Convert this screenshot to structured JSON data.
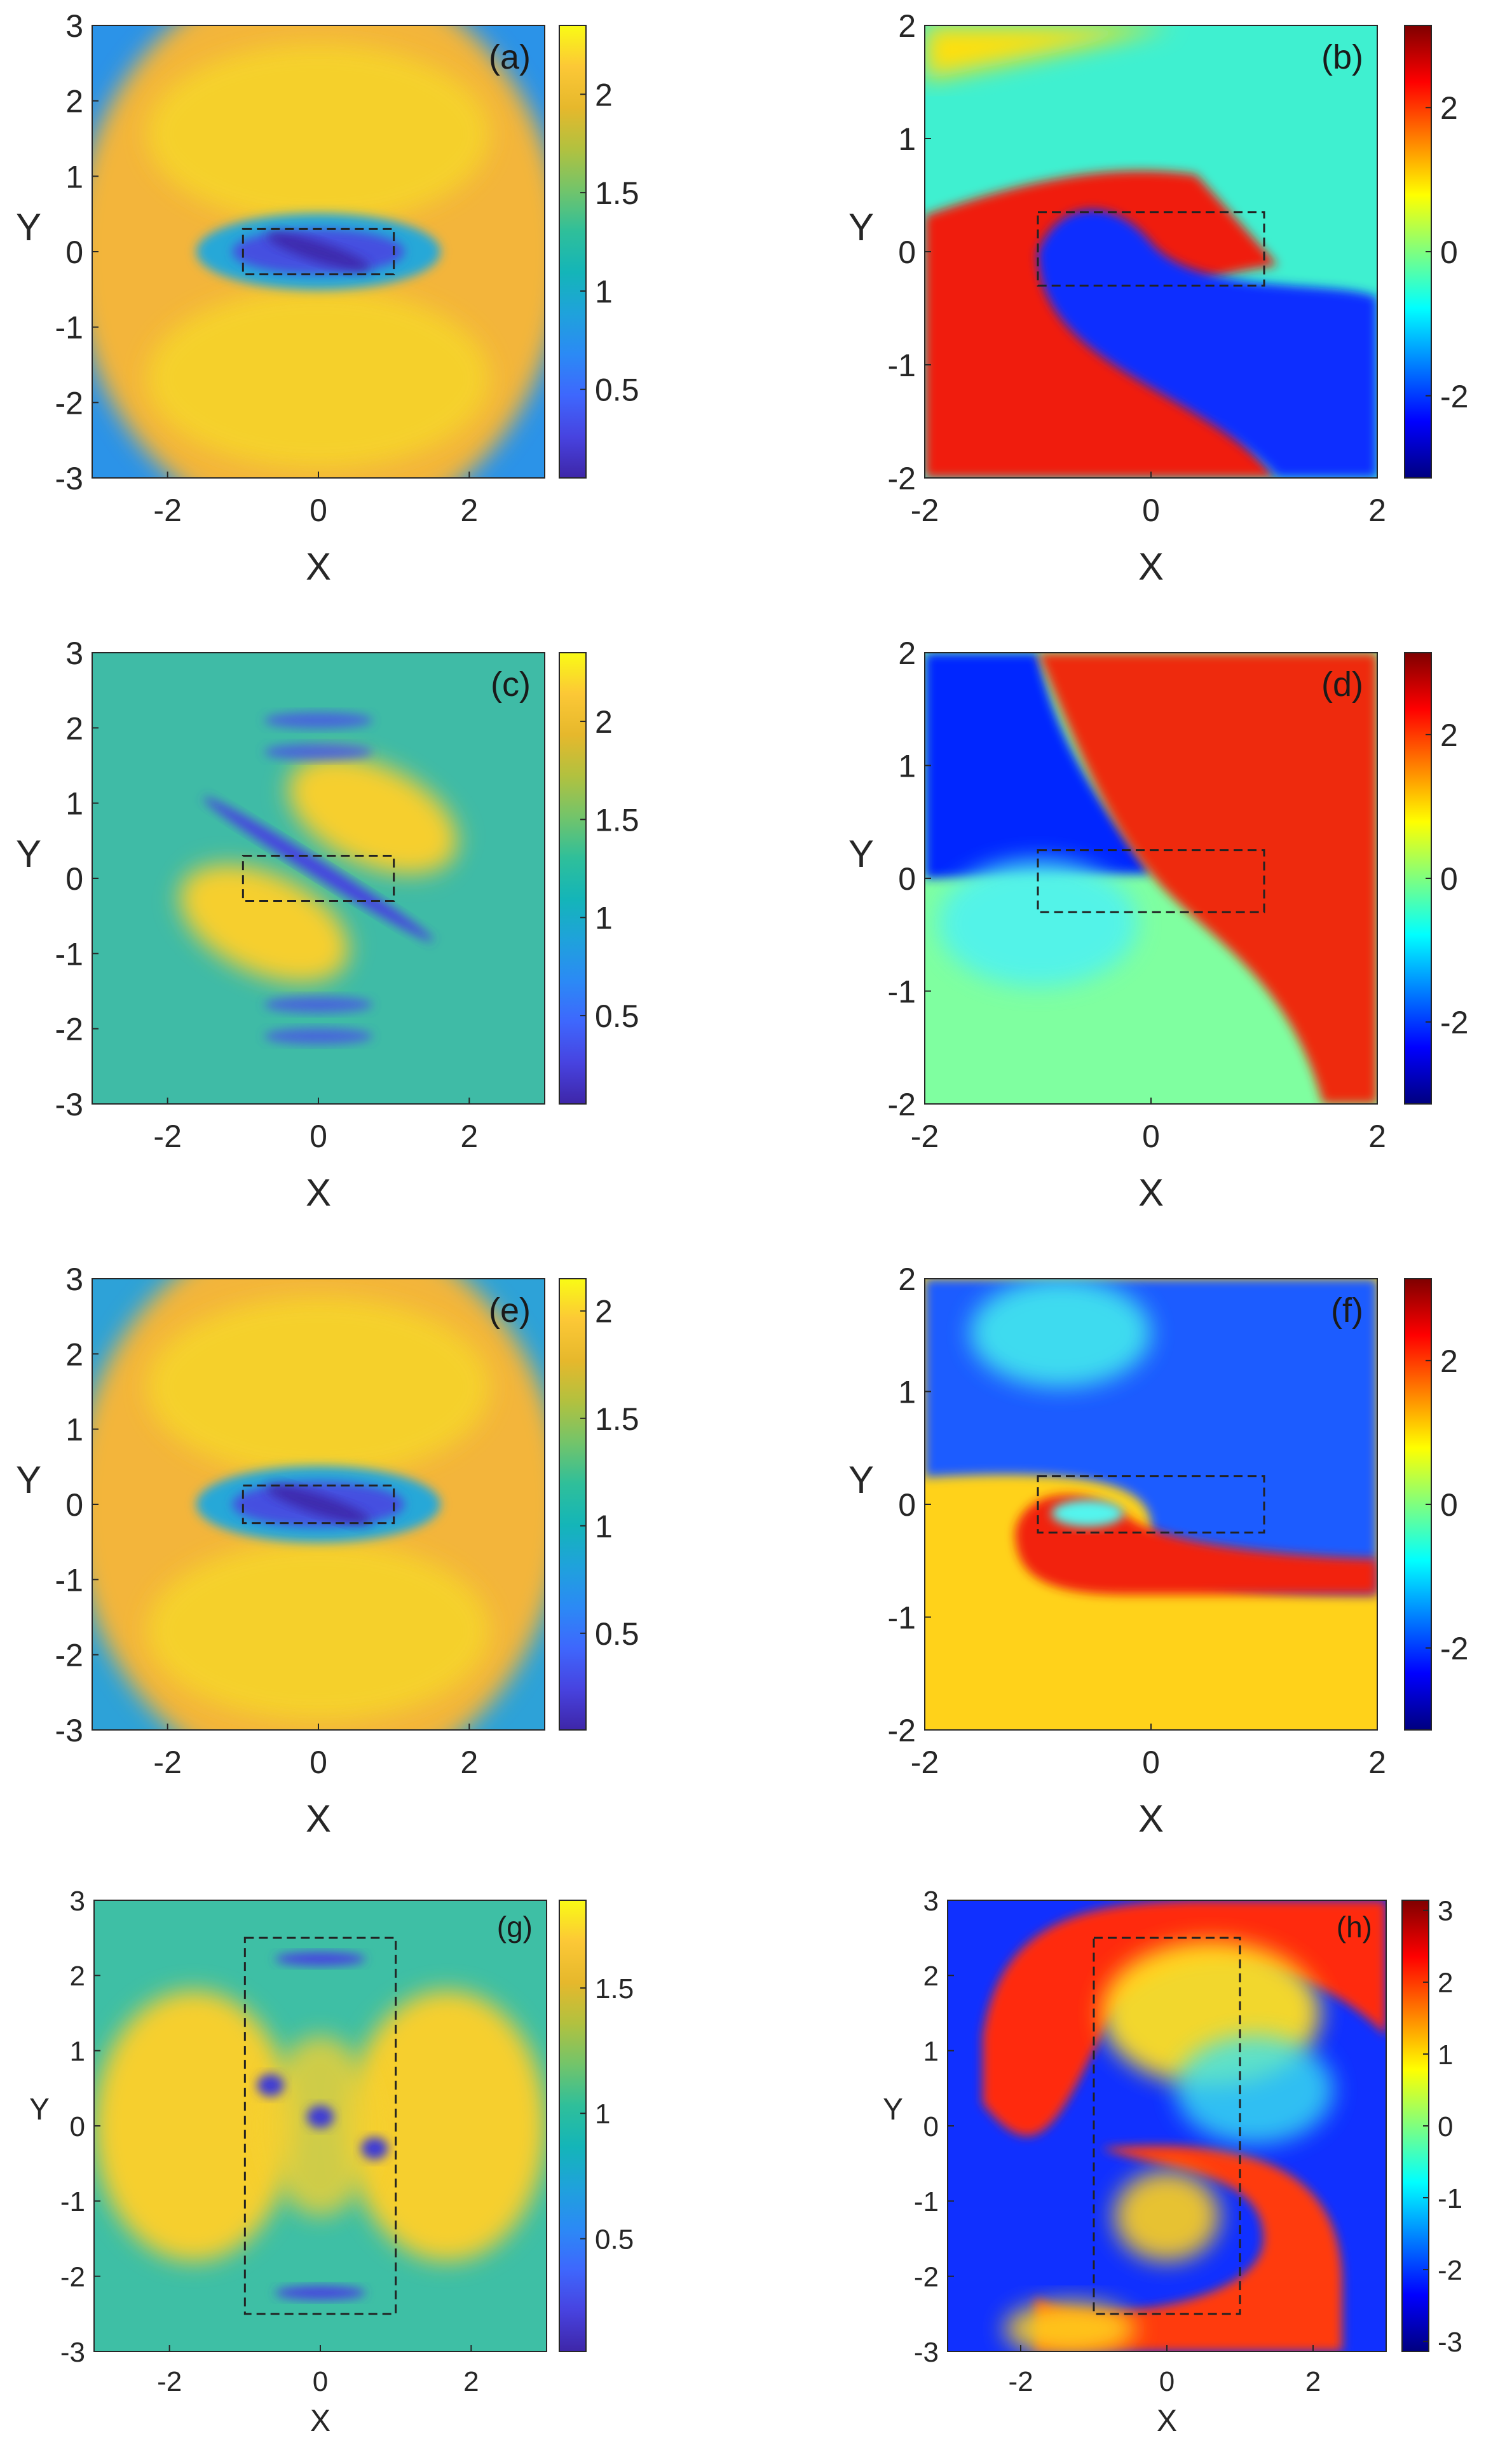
{
  "chart_data": [
    {
      "type": "heatmap",
      "panel_label": "(a)",
      "quantity": "amplitude",
      "colormap": "parula",
      "xlabel": "X",
      "ylabel": "Y",
      "xlim": [
        -3,
        3
      ],
      "ylim": [
        -3,
        3
      ],
      "xticks": [
        "-2",
        "0",
        "2"
      ],
      "yticks": [
        "3",
        "2",
        "1",
        "0",
        "-1",
        "-2",
        "-3"
      ],
      "colorbar": {
        "range": [
          0.05,
          2.35
        ],
        "ticks": [
          "0.5",
          "1",
          "1.5",
          "2"
        ]
      },
      "dashed_box": {
        "x": [
          -1,
          1
        ],
        "y": [
          -0.3,
          0.3
        ]
      }
    },
    {
      "type": "heatmap",
      "panel_label": "(b)",
      "quantity": "phase",
      "colormap": "jet",
      "xlabel": "X",
      "ylabel": "Y",
      "xlim": [
        -2,
        2
      ],
      "ylim": [
        -2,
        2
      ],
      "xticks": [
        "-2",
        "0",
        "2"
      ],
      "yticks": [
        "2",
        "1",
        "0",
        "-1",
        "-2"
      ],
      "colorbar": {
        "range": [
          -3.14,
          3.14
        ],
        "ticks": [
          "2",
          "0",
          "-2"
        ]
      },
      "dashed_box": {
        "x": [
          -1,
          1
        ],
        "y": [
          -0.3,
          0.35
        ]
      }
    },
    {
      "type": "heatmap",
      "panel_label": "(c)",
      "quantity": "amplitude",
      "colormap": "parula",
      "xlabel": "X",
      "ylabel": "Y",
      "xlim": [
        -3,
        3
      ],
      "ylim": [
        -3,
        3
      ],
      "xticks": [
        "-2",
        "0",
        "2"
      ],
      "yticks": [
        "3",
        "2",
        "1",
        "0",
        "-1",
        "-2",
        "-3"
      ],
      "colorbar": {
        "range": [
          0.05,
          2.35
        ],
        "ticks": [
          "0.5",
          "1",
          "1.5",
          "2"
        ]
      },
      "dashed_box": {
        "x": [
          -1,
          1
        ],
        "y": [
          -0.3,
          0.3
        ]
      }
    },
    {
      "type": "heatmap",
      "panel_label": "(d)",
      "quantity": "phase",
      "colormap": "jet",
      "xlabel": "X",
      "ylabel": "Y",
      "xlim": [
        -2,
        2
      ],
      "ylim": [
        -2,
        2
      ],
      "xticks": [
        "-2",
        "0",
        "2"
      ],
      "yticks": [
        "2",
        "1",
        "0",
        "-1",
        "-2"
      ],
      "colorbar": {
        "range": [
          -3.14,
          3.14
        ],
        "ticks": [
          "2",
          "0",
          "-2"
        ]
      },
      "dashed_box": {
        "x": [
          -1,
          1
        ],
        "y": [
          -0.3,
          0.25
        ]
      }
    },
    {
      "type": "heatmap",
      "panel_label": "(e)",
      "quantity": "amplitude",
      "colormap": "parula",
      "xlabel": "X",
      "ylabel": "Y",
      "xlim": [
        -3,
        3
      ],
      "ylim": [
        -3,
        3
      ],
      "xticks": [
        "-2",
        "0",
        "2"
      ],
      "yticks": [
        "3",
        "2",
        "1",
        "0",
        "-1",
        "-2",
        "-3"
      ],
      "colorbar": {
        "range": [
          0.05,
          2.15
        ],
        "ticks": [
          "0.5",
          "1",
          "1.5",
          "2"
        ]
      },
      "dashed_box": {
        "x": [
          -1,
          1
        ],
        "y": [
          -0.25,
          0.25
        ]
      }
    },
    {
      "type": "heatmap",
      "panel_label": "(f)",
      "quantity": "phase",
      "colormap": "jet",
      "xlabel": "X",
      "ylabel": "Y",
      "xlim": [
        -2,
        2
      ],
      "ylim": [
        -2,
        2
      ],
      "xticks": [
        "-2",
        "0",
        "2"
      ],
      "yticks": [
        "2",
        "1",
        "0",
        "-1",
        "-2"
      ],
      "colorbar": {
        "range": [
          -3.14,
          3.14
        ],
        "ticks": [
          "2",
          "0",
          "-2"
        ]
      },
      "dashed_box": {
        "x": [
          -1,
          1
        ],
        "y": [
          -0.25,
          0.25
        ]
      }
    },
    {
      "type": "heatmap",
      "panel_label": "(g)",
      "quantity": "amplitude",
      "colormap": "parula",
      "xlabel": "X",
      "ylabel": "Y",
      "xlim": [
        -3,
        3
      ],
      "ylim": [
        -3,
        3
      ],
      "xticks": [
        "-2",
        "0",
        "2"
      ],
      "yticks": [
        "3",
        "2",
        "1",
        "0",
        "-1",
        "-2",
        "-3"
      ],
      "colorbar": {
        "range": [
          0.05,
          1.85
        ],
        "ticks": [
          "0.5",
          "1",
          "1.5"
        ]
      },
      "dashed_box": {
        "x": [
          -1,
          1
        ],
        "y": [
          -2.5,
          2.5
        ]
      }
    },
    {
      "type": "heatmap",
      "panel_label": "(h)",
      "quantity": "phase",
      "colormap": "jet",
      "xlabel": "X",
      "ylabel": "Y",
      "xlim": [
        -3,
        3
      ],
      "ylim": [
        -3,
        3
      ],
      "xticks": [
        "-2",
        "0",
        "2"
      ],
      "yticks": [
        "3",
        "2",
        "1",
        "0",
        "-1",
        "-2",
        "-3"
      ],
      "colorbar": {
        "range": [
          -3.14,
          3.14
        ],
        "ticks": [
          "3",
          "2",
          "1",
          "0",
          "-1",
          "-2",
          "-3"
        ]
      },
      "dashed_box": {
        "x": [
          -1,
          1
        ],
        "y": [
          -2.5,
          2.5
        ]
      }
    }
  ]
}
